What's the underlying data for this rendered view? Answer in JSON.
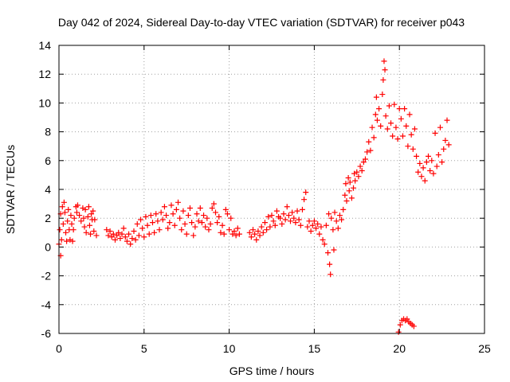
{
  "chart_data": {
    "type": "scatter",
    "title": "Day 042 of 2024, Sidereal Day-to-day VTEC variation (SDTVAR) for receiver p043",
    "xlabel": "GPS time / hours",
    "ylabel": "SDTVAR / TECUs",
    "xlim": [
      0,
      25
    ],
    "ylim": [
      -6,
      14
    ],
    "x_ticks": [
      "0",
      "5",
      "10",
      "15",
      "20",
      "25"
    ],
    "y_ticks": [
      "-6",
      "-4",
      "-2",
      "0",
      "2",
      "4",
      "6",
      "8",
      "10",
      "12",
      "14"
    ],
    "grid": true,
    "marker": "plus",
    "series": [
      {
        "name": "SDTVAR",
        "color": "#ff0000",
        "points": [
          [
            0.0,
            0.2
          ],
          [
            0.05,
            1.2
          ],
          [
            0.1,
            2.3
          ],
          [
            0.1,
            -0.6
          ],
          [
            0.15,
            0.5
          ],
          [
            0.2,
            2.8
          ],
          [
            0.25,
            1.6
          ],
          [
            0.3,
            3.1
          ],
          [
            0.35,
            2.4
          ],
          [
            0.4,
            1.0
          ],
          [
            0.45,
            0.4
          ],
          [
            0.5,
            1.8
          ],
          [
            0.55,
            2.6
          ],
          [
            0.6,
            1.2
          ],
          [
            0.65,
            0.5
          ],
          [
            0.7,
            2.2
          ],
          [
            0.75,
            1.6
          ],
          [
            0.8,
            0.4
          ],
          [
            0.85,
            1.2
          ],
          [
            0.9,
            2.0
          ],
          [
            1.0,
            2.8
          ],
          [
            1.05,
            2.4
          ],
          [
            1.1,
            2.9
          ],
          [
            1.2,
            2.2
          ],
          [
            1.3,
            1.8
          ],
          [
            1.4,
            2.7
          ],
          [
            1.45,
            2.0
          ],
          [
            1.5,
            1.4
          ],
          [
            1.55,
            2.6
          ],
          [
            1.6,
            1.0
          ],
          [
            1.7,
            2.1
          ],
          [
            1.75,
            2.8
          ],
          [
            1.8,
            1.5
          ],
          [
            1.85,
            0.9
          ],
          [
            1.9,
            2.3
          ],
          [
            1.95,
            1.9
          ],
          [
            2.0,
            2.5
          ],
          [
            2.05,
            1.1
          ],
          [
            2.1,
            1.9
          ],
          [
            2.2,
            0.8
          ],
          [
            2.8,
            1.2
          ],
          [
            2.9,
            0.8
          ],
          [
            3.0,
            1.1
          ],
          [
            3.1,
            0.7
          ],
          [
            3.2,
            0.9
          ],
          [
            3.3,
            0.5
          ],
          [
            3.4,
            0.8
          ],
          [
            3.5,
            1.0
          ],
          [
            3.6,
            0.6
          ],
          [
            3.7,
            0.9
          ],
          [
            3.8,
            1.3
          ],
          [
            3.9,
            0.7
          ],
          [
            4.0,
            0.4
          ],
          [
            4.1,
            0.9
          ],
          [
            4.2,
            0.2
          ],
          [
            4.3,
            0.6
          ],
          [
            4.4,
            1.1
          ],
          [
            4.5,
            0.5
          ],
          [
            4.6,
            1.6
          ],
          [
            4.7,
            0.8
          ],
          [
            4.8,
            1.9
          ],
          [
            4.9,
            1.3
          ],
          [
            5.0,
            0.7
          ],
          [
            5.1,
            2.1
          ],
          [
            5.2,
            1.5
          ],
          [
            5.3,
            0.9
          ],
          [
            5.4,
            2.2
          ],
          [
            5.5,
            1.7
          ],
          [
            5.6,
            1.0
          ],
          [
            5.7,
            2.3
          ],
          [
            5.8,
            1.8
          ],
          [
            5.9,
            1.2
          ],
          [
            6.0,
            2.4
          ],
          [
            6.1,
            1.9
          ],
          [
            6.2,
            2.8
          ],
          [
            6.3,
            2.2
          ],
          [
            6.4,
            1.3
          ],
          [
            6.5,
            1.7
          ],
          [
            6.6,
            2.9
          ],
          [
            6.7,
            2.3
          ],
          [
            6.8,
            1.5
          ],
          [
            6.9,
            2.6
          ],
          [
            7.0,
            3.1
          ],
          [
            7.1,
            2.0
          ],
          [
            7.2,
            1.2
          ],
          [
            7.3,
            2.5
          ],
          [
            7.4,
            1.6
          ],
          [
            7.5,
            0.9
          ],
          [
            7.6,
            2.2
          ],
          [
            7.7,
            2.7
          ],
          [
            7.8,
            1.7
          ],
          [
            7.9,
            0.8
          ],
          [
            8.0,
            1.4
          ],
          [
            8.1,
            2.3
          ],
          [
            8.2,
            1.8
          ],
          [
            8.3,
            2.7
          ],
          [
            8.4,
            1.7
          ],
          [
            8.5,
            2.2
          ],
          [
            8.6,
            1.4
          ],
          [
            8.7,
            2.0
          ],
          [
            8.8,
            1.2
          ],
          [
            8.9,
            1.6
          ],
          [
            9.0,
            2.7
          ],
          [
            9.1,
            3.0
          ],
          [
            9.2,
            2.4
          ],
          [
            9.3,
            1.7
          ],
          [
            9.4,
            2.1
          ],
          [
            9.5,
            1.0
          ],
          [
            9.6,
            1.5
          ],
          [
            9.7,
            0.9
          ],
          [
            9.8,
            2.6
          ],
          [
            9.9,
            2.3
          ],
          [
            10.0,
            1.2
          ],
          [
            10.1,
            2.0
          ],
          [
            10.2,
            0.9
          ],
          [
            10.3,
            1.1
          ],
          [
            10.4,
            0.8
          ],
          [
            10.5,
            1.3
          ],
          [
            10.6,
            0.9
          ],
          [
            11.2,
            1.0
          ],
          [
            11.3,
            0.7
          ],
          [
            11.4,
            1.2
          ],
          [
            11.5,
            0.9
          ],
          [
            11.6,
            0.5
          ],
          [
            11.7,
            1.1
          ],
          [
            11.8,
            0.8
          ],
          [
            11.9,
            1.4
          ],
          [
            12.0,
            1.0
          ],
          [
            12.1,
            1.7
          ],
          [
            12.2,
            1.2
          ],
          [
            12.3,
            2.1
          ],
          [
            12.4,
            1.4
          ],
          [
            12.5,
            2.2
          ],
          [
            12.6,
            1.8
          ],
          [
            12.7,
            1.5
          ],
          [
            12.8,
            2.5
          ],
          [
            12.9,
            2.1
          ],
          [
            13.0,
            2.0
          ],
          [
            13.1,
            1.6
          ],
          [
            13.2,
            2.3
          ],
          [
            13.3,
            1.9
          ],
          [
            13.4,
            2.8
          ],
          [
            13.5,
            2.2
          ],
          [
            13.6,
            1.8
          ],
          [
            13.7,
            2.4
          ],
          [
            13.8,
            2.0
          ],
          [
            13.9,
            1.7
          ],
          [
            14.0,
            2.5
          ],
          [
            14.1,
            1.9
          ],
          [
            14.2,
            1.5
          ],
          [
            14.3,
            2.6
          ],
          [
            14.4,
            3.3
          ],
          [
            14.5,
            3.8
          ],
          [
            14.6,
            1.4
          ],
          [
            14.7,
            1.8
          ],
          [
            14.8,
            1.1
          ],
          [
            14.9,
            1.5
          ],
          [
            15.0,
            1.8
          ],
          [
            15.1,
            1.3
          ],
          [
            15.2,
            1.6
          ],
          [
            15.3,
            0.9
          ],
          [
            15.4,
            1.4
          ],
          [
            15.5,
            0.5
          ],
          [
            15.6,
            0.2
          ],
          [
            15.7,
            1.5
          ],
          [
            15.8,
            -0.4
          ],
          [
            15.85,
            2.3
          ],
          [
            15.9,
            -1.2
          ],
          [
            15.95,
            -1.9
          ],
          [
            16.0,
            2.0
          ],
          [
            16.1,
            1.2
          ],
          [
            16.15,
            -0.2
          ],
          [
            16.2,
            2.4
          ],
          [
            16.3,
            1.8
          ],
          [
            16.4,
            1.3
          ],
          [
            16.5,
            2.2
          ],
          [
            16.6,
            1.9
          ],
          [
            16.7,
            2.6
          ],
          [
            16.8,
            3.6
          ],
          [
            16.85,
            4.4
          ],
          [
            16.9,
            3.2
          ],
          [
            17.0,
            4.8
          ],
          [
            17.05,
            3.9
          ],
          [
            17.1,
            4.5
          ],
          [
            17.2,
            3.4
          ],
          [
            17.3,
            4.1
          ],
          [
            17.35,
            5.1
          ],
          [
            17.4,
            4.6
          ],
          [
            17.5,
            5.2
          ],
          [
            17.6,
            4.9
          ],
          [
            17.7,
            5.6
          ],
          [
            17.8,
            5.3
          ],
          [
            17.9,
            5.9
          ],
          [
            18.0,
            6.1
          ],
          [
            18.1,
            6.6
          ],
          [
            18.2,
            7.3
          ],
          [
            18.3,
            6.7
          ],
          [
            18.4,
            8.3
          ],
          [
            18.5,
            7.6
          ],
          [
            18.6,
            9.2
          ],
          [
            18.65,
            10.4
          ],
          [
            18.7,
            8.8
          ],
          [
            18.8,
            9.6
          ],
          [
            18.9,
            8.4
          ],
          [
            19.0,
            10.6
          ],
          [
            19.05,
            11.6
          ],
          [
            19.1,
            12.9
          ],
          [
            19.15,
            12.3
          ],
          [
            19.2,
            9.1
          ],
          [
            19.3,
            8.2
          ],
          [
            19.4,
            9.8
          ],
          [
            19.5,
            8.6
          ],
          [
            19.6,
            7.7
          ],
          [
            19.7,
            9.9
          ],
          [
            19.8,
            8.3
          ],
          [
            19.9,
            7.5
          ],
          [
            19.95,
            -5.9
          ],
          [
            20.0,
            9.6
          ],
          [
            20.05,
            -5.4
          ],
          [
            20.1,
            8.9
          ],
          [
            20.15,
            -5.1
          ],
          [
            20.2,
            7.7
          ],
          [
            20.25,
            -5.0
          ],
          [
            20.3,
            9.6
          ],
          [
            20.35,
            -5.1
          ],
          [
            20.4,
            8.4
          ],
          [
            20.45,
            -5.0
          ],
          [
            20.5,
            7.0
          ],
          [
            20.55,
            -5.2
          ],
          [
            20.6,
            9.2
          ],
          [
            20.65,
            -5.3
          ],
          [
            20.7,
            7.8
          ],
          [
            20.75,
            -5.4
          ],
          [
            20.8,
            6.8
          ],
          [
            20.85,
            -5.5
          ],
          [
            20.9,
            8.2
          ],
          [
            21.0,
            6.3
          ],
          [
            21.1,
            5.2
          ],
          [
            21.2,
            5.8
          ],
          [
            21.3,
            4.9
          ],
          [
            21.4,
            5.5
          ],
          [
            21.5,
            4.6
          ],
          [
            21.6,
            5.9
          ],
          [
            21.7,
            6.3
          ],
          [
            21.8,
            5.3
          ],
          [
            21.9,
            6.0
          ],
          [
            22.0,
            5.1
          ],
          [
            22.1,
            7.9
          ],
          [
            22.2,
            5.6
          ],
          [
            22.3,
            6.4
          ],
          [
            22.4,
            8.3
          ],
          [
            22.5,
            5.9
          ],
          [
            22.6,
            6.8
          ],
          [
            22.7,
            7.4
          ],
          [
            22.8,
            8.8
          ],
          [
            22.9,
            7.1
          ]
        ]
      }
    ]
  }
}
